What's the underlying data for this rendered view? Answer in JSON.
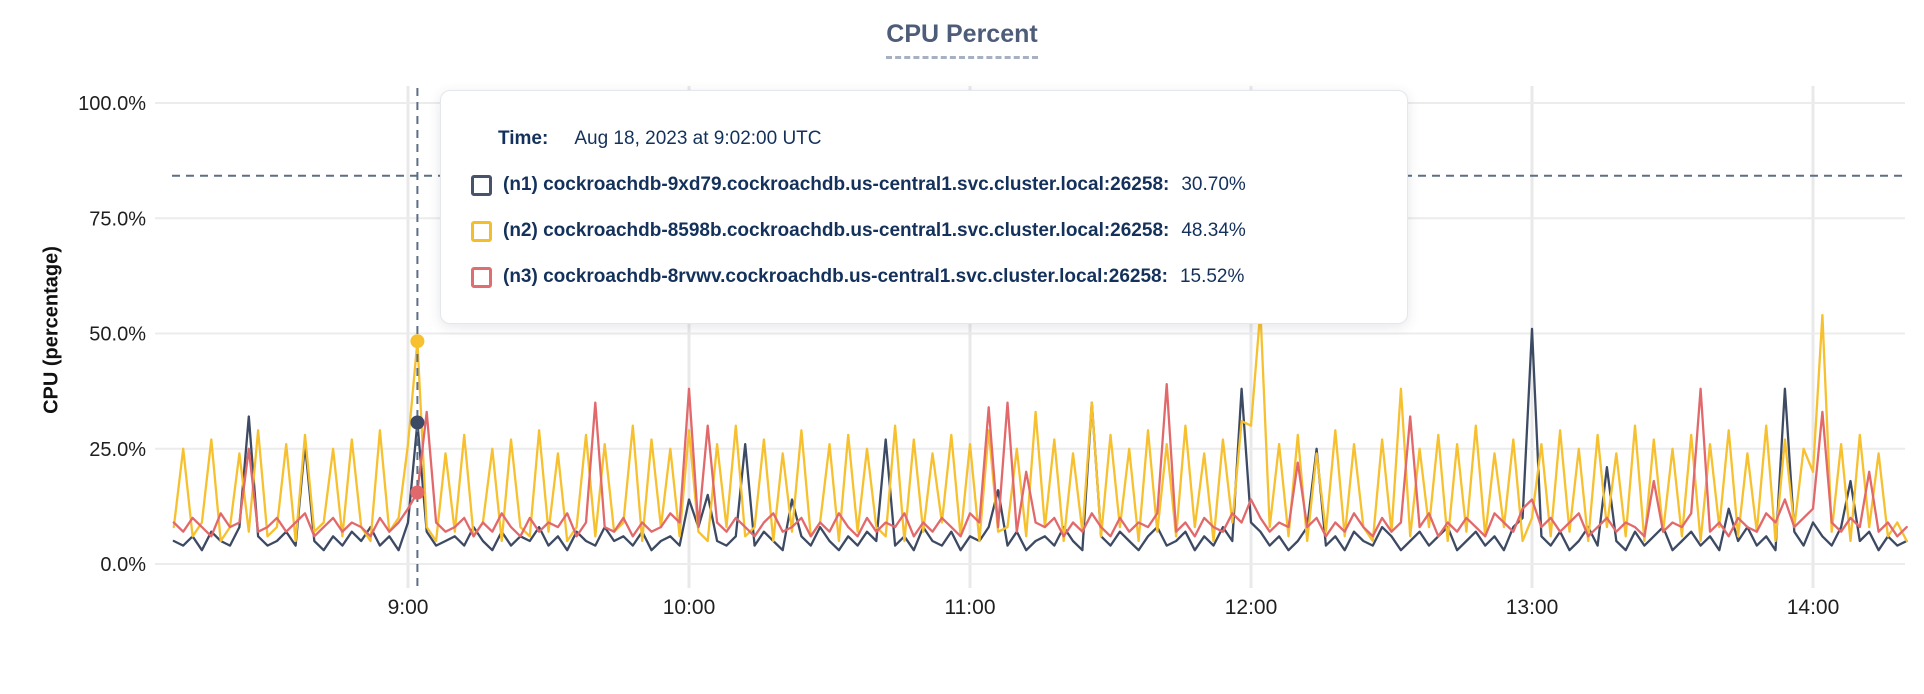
{
  "chart": {
    "title": "CPU Percent",
    "y_axis_label": "CPU (percentage)"
  },
  "tooltip": {
    "time_label": "Time:",
    "time_value": "Aug 18, 2023 at 9:02:00 UTC",
    "series": [
      {
        "label": "(n1) cockroachdb-9xd79.cockroachdb.us-central1.svc.cluster.local:26258:",
        "value": "30.70%",
        "color": "#47526B"
      },
      {
        "label": "(n2) cockroachdb-8598b.cockroachdb.us-central1.svc.cluster.local:26258:",
        "value": "48.34%",
        "color": "#F3BE2C"
      },
      {
        "label": "(n3) cockroachdb-8rvwv.cockroachdb.us-central1.svc.cluster.local:26258:",
        "value": "15.52%",
        "color": "#E06E70"
      }
    ]
  },
  "chart_data": {
    "type": "line",
    "title": "CPU Percent",
    "xlabel": "",
    "ylabel": "CPU (percentage)",
    "ylim": [
      0,
      100
    ],
    "y_ticks": [
      0,
      25,
      50,
      75,
      100
    ],
    "y_tick_labels": [
      "0.0%",
      "25.0%",
      "50.0%",
      "75.0%",
      "100.0%"
    ],
    "x_tick_labels": [
      "9:00",
      "10:00",
      "11:00",
      "12:00",
      "13:00",
      "14:00"
    ],
    "x_tick_minutes": [
      540,
      600,
      660,
      720,
      780,
      840
    ],
    "x_start_minute": 490,
    "x_step_minutes": 2,
    "x_start_time": "08:10",
    "x_end_time": "14:20",
    "grid": true,
    "legend": "tooltip-only",
    "hover": {
      "time": "Aug 18, 2023 at 9:02:00 UTC",
      "x_minute": 542,
      "values": [
        30.7,
        48.34,
        15.52
      ],
      "hline_percent": 84.2
    },
    "series": [
      {
        "name": "(n1) cockroachdb-9xd79.cockroachdb.us-central1.svc.cluster.local:26258",
        "color": "#3D4A63",
        "values": [
          5,
          4,
          6,
          3,
          7,
          5,
          4,
          8,
          32,
          6,
          4,
          5,
          7,
          4,
          26,
          5,
          3,
          6,
          4,
          7,
          5,
          8,
          4,
          6,
          3,
          9,
          30.7,
          7,
          4,
          5,
          6,
          4,
          8,
          5,
          3,
          7,
          4,
          6,
          5,
          8,
          4,
          6,
          3,
          7,
          5,
          4,
          8,
          5,
          6,
          4,
          7,
          3,
          5,
          6,
          4,
          14,
          8,
          15,
          5,
          4,
          6,
          26,
          4,
          7,
          5,
          3,
          14,
          6,
          4,
          8,
          5,
          3,
          6,
          4,
          7,
          5,
          27,
          4,
          6,
          3,
          8,
          5,
          4,
          7,
          3,
          6,
          5,
          8,
          16,
          4,
          7,
          3,
          5,
          6,
          4,
          8,
          5,
          3,
          35,
          6,
          4,
          7,
          5,
          3,
          6,
          8,
          4,
          5,
          7,
          3,
          6,
          4,
          8,
          5,
          38,
          9,
          7,
          4,
          6,
          3,
          5,
          8,
          25,
          4,
          6,
          3,
          7,
          5,
          4,
          8,
          6,
          3,
          5,
          7,
          4,
          6,
          8,
          3,
          5,
          7,
          4,
          6,
          3,
          8,
          10,
          51,
          6,
          4,
          7,
          3,
          5,
          8,
          4,
          21,
          5,
          3,
          7,
          4,
          6,
          8,
          3,
          5,
          7,
          4,
          6,
          3,
          12,
          5,
          8,
          4,
          6,
          3,
          38,
          7,
          4,
          9,
          6,
          4,
          8,
          18,
          5,
          7,
          3,
          6,
          4,
          5
        ]
      },
      {
        "name": "(n2) cockroachdb-8598b.cockroachdb.us-central1.svc.cluster.local:26258",
        "color": "#F6C02F",
        "values": [
          8,
          25,
          6,
          9,
          27,
          5,
          8,
          24,
          7,
          29,
          6,
          8,
          26,
          5,
          28,
          7,
          9,
          25,
          6,
          27,
          8,
          5,
          29,
          7,
          10,
          26,
          48.34,
          8,
          5,
          24,
          7,
          28,
          6,
          9,
          25,
          5,
          27,
          8,
          6,
          29,
          7,
          24,
          5,
          8,
          28,
          6,
          26,
          7,
          9,
          30,
          5,
          27,
          8,
          25,
          6,
          29,
          7,
          5,
          26,
          8,
          30,
          6,
          8,
          27,
          5,
          24,
          7,
          29,
          6,
          9,
          26,
          5,
          28,
          7,
          25,
          8,
          6,
          30,
          5,
          27,
          7,
          24,
          9,
          28,
          6,
          26,
          5,
          29,
          7,
          8,
          25,
          6,
          33,
          8,
          27,
          5,
          24,
          7,
          35,
          6,
          28,
          8,
          25,
          5,
          29,
          7,
          26,
          6,
          30,
          8,
          24,
          5,
          27,
          9,
          31,
          30,
          55,
          8,
          26,
          6,
          28,
          5,
          24,
          7,
          29,
          6,
          26,
          8,
          5,
          27,
          7,
          38,
          6,
          25,
          8,
          28,
          5,
          26,
          7,
          30,
          6,
          24,
          8,
          27,
          5,
          10,
          26,
          6,
          29,
          7,
          25,
          5,
          28,
          8,
          24,
          6,
          30,
          5,
          27,
          7,
          25,
          6,
          28,
          5,
          26,
          8,
          29,
          6,
          24,
          7,
          30,
          5,
          27,
          8,
          25,
          20,
          54,
          7,
          26,
          5,
          28,
          8,
          24,
          6,
          9,
          5
        ]
      },
      {
        "name": "(n3) cockroachdb-8rvwv.cockroachdb.us-central1.svc.cluster.local:26258",
        "color": "#E2696B",
        "values": [
          9,
          7,
          10,
          8,
          6,
          11,
          8,
          9,
          25,
          7,
          8,
          10,
          7,
          9,
          11,
          6,
          8,
          10,
          7,
          9,
          8,
          6,
          10,
          7,
          9,
          12,
          15.52,
          33,
          9,
          7,
          8,
          10,
          6,
          9,
          7,
          11,
          8,
          6,
          10,
          7,
          9,
          8,
          11,
          6,
          9,
          35,
          8,
          7,
          10,
          6,
          9,
          7,
          8,
          11,
          9,
          38,
          8,
          30,
          9,
          7,
          10,
          8,
          6,
          9,
          11,
          7,
          8,
          10,
          6,
          9,
          7,
          11,
          8,
          6,
          10,
          7,
          9,
          8,
          11,
          6,
          9,
          7,
          10,
          8,
          6,
          11,
          9,
          34,
          8,
          35,
          7,
          20,
          9,
          8,
          10,
          6,
          9,
          7,
          11,
          8,
          6,
          10,
          7,
          9,
          8,
          11,
          39,
          7,
          9,
          6,
          10,
          8,
          7,
          11,
          9,
          14,
          10,
          7,
          9,
          8,
          22,
          8,
          10,
          6,
          9,
          7,
          11,
          8,
          6,
          10,
          7,
          9,
          32,
          8,
          11,
          6,
          9,
          7,
          10,
          8,
          6,
          11,
          9,
          7,
          12,
          14,
          8,
          10,
          7,
          9,
          11,
          6,
          8,
          10,
          7,
          9,
          8,
          6,
          18,
          7,
          9,
          8,
          11,
          38,
          7,
          9,
          6,
          10,
          8,
          7,
          11,
          9,
          14,
          8,
          10,
          12,
          33,
          9,
          7,
          10,
          8,
          20,
          7,
          9,
          6,
          8
        ]
      }
    ]
  }
}
